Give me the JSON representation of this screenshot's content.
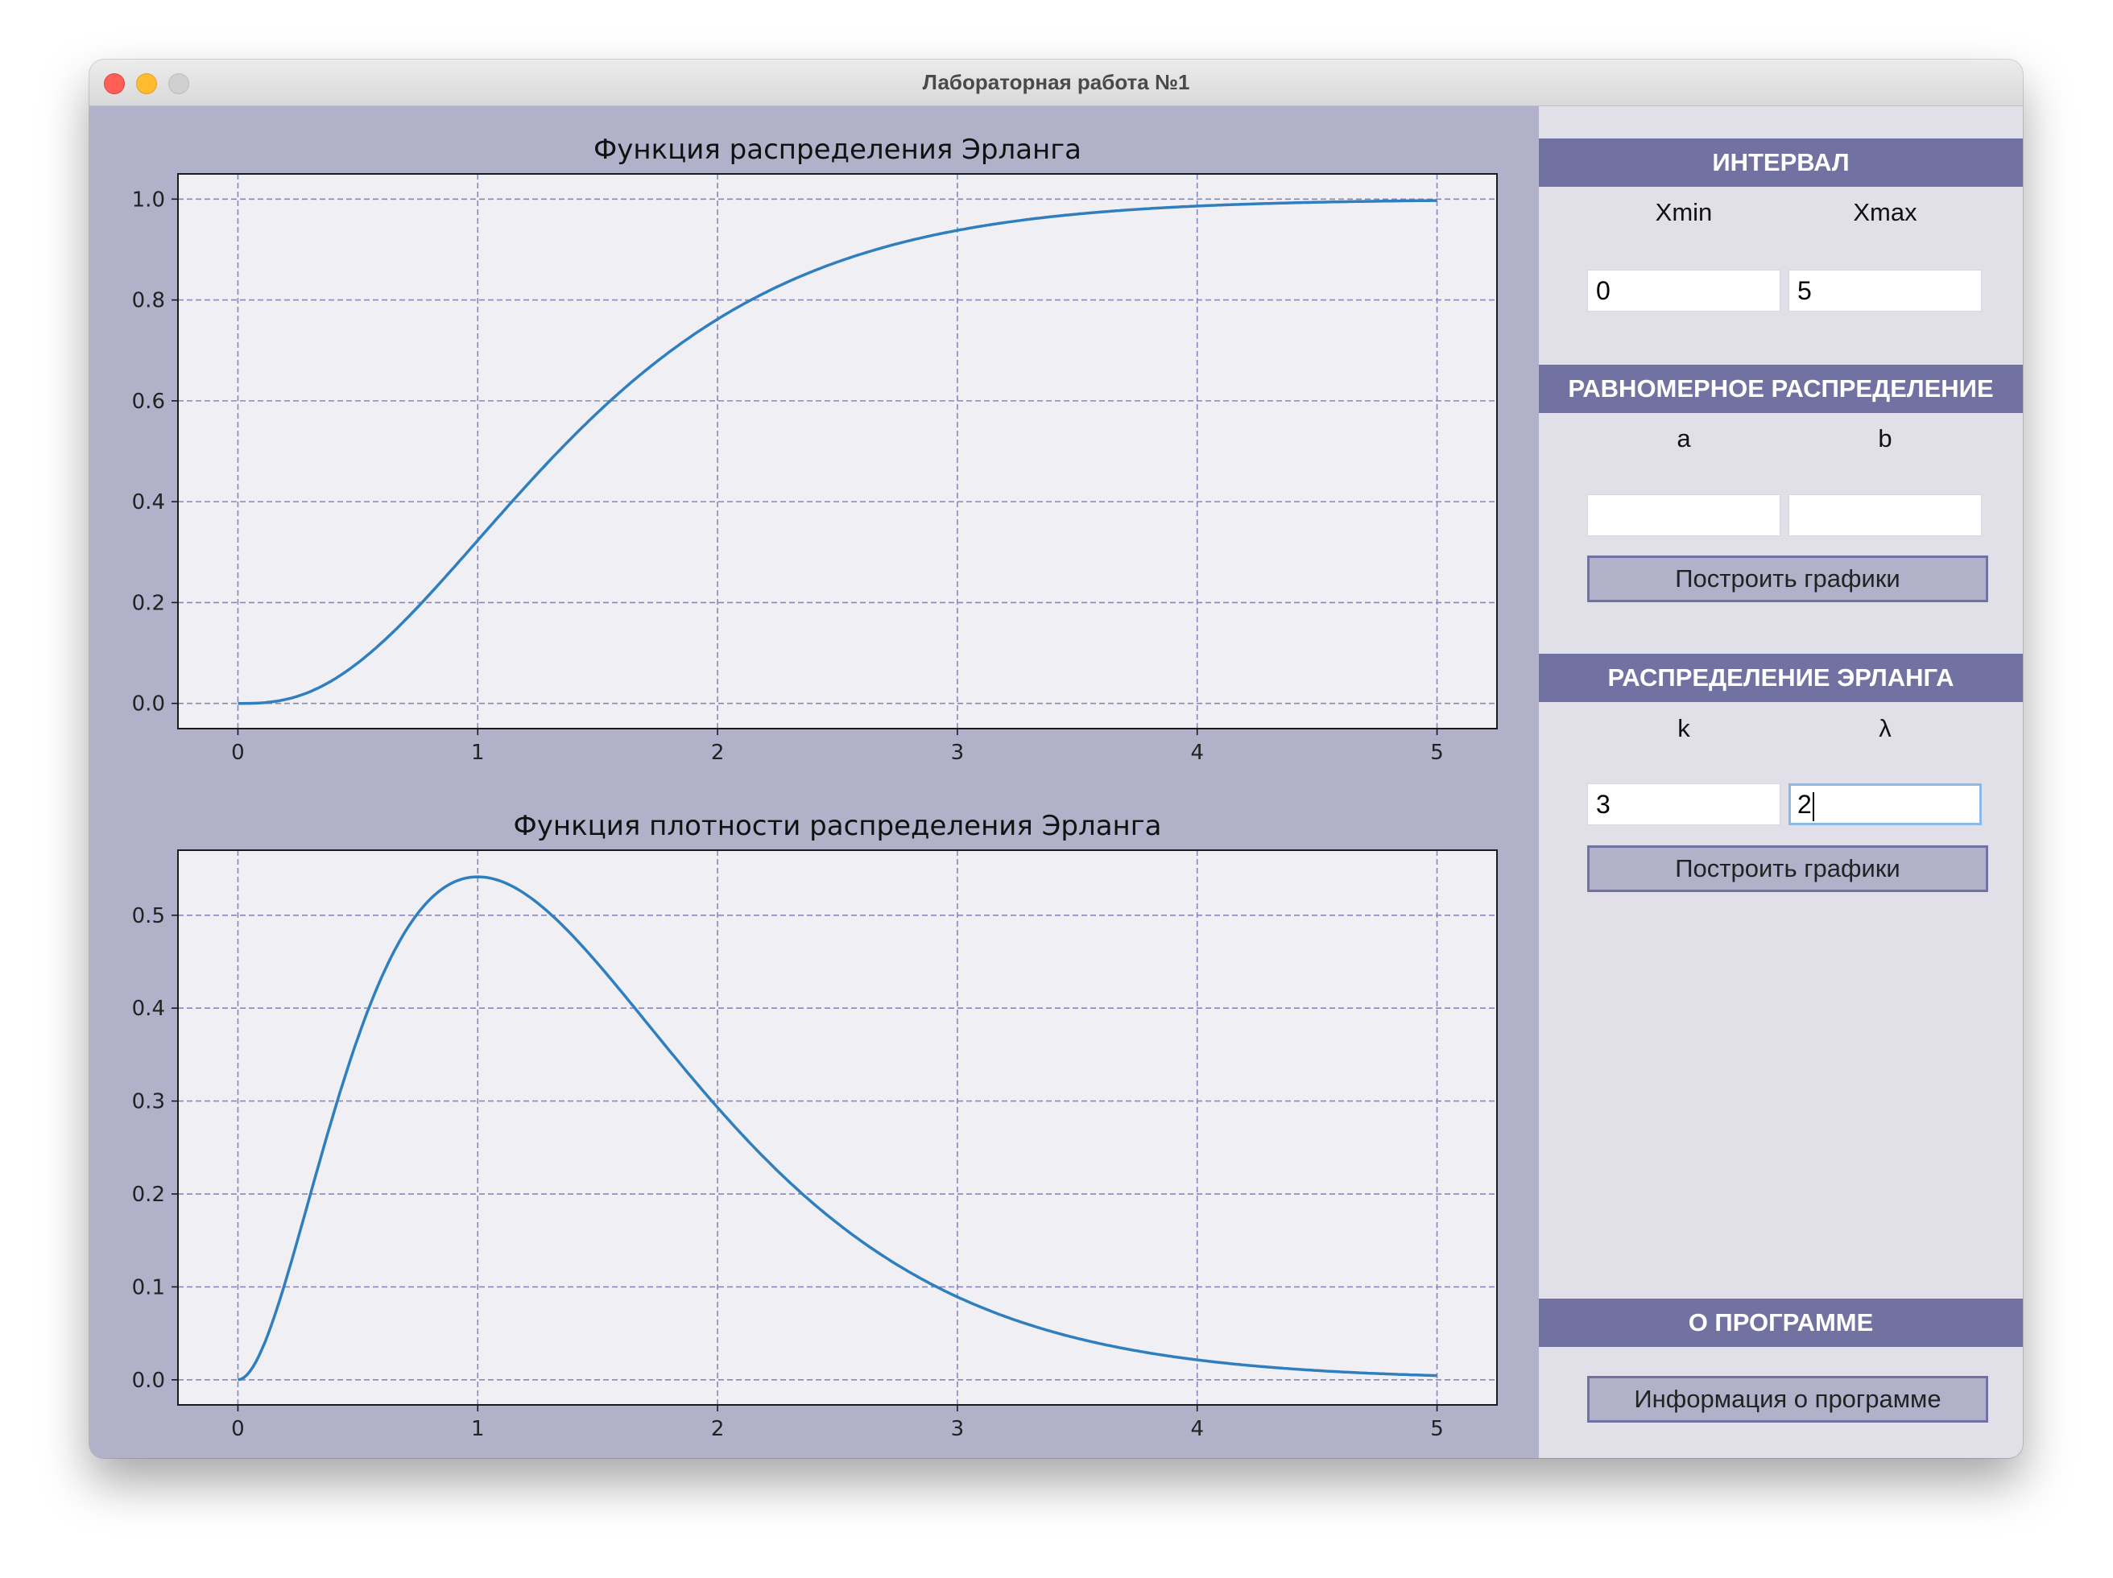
{
  "window": {
    "title": "Лабораторная работа №1"
  },
  "colors": {
    "header": "#7272a2",
    "sidebar": "#e1e0e9",
    "plot_background": "#b1b1ca",
    "axes_face": "#efeff4",
    "grid": "#8a87bb",
    "line": "#2f7fbf"
  },
  "sidebar": {
    "interval": {
      "header": "ИНТЕРВАЛ",
      "xmin_label": "Xmin",
      "xmax_label": "Xmax",
      "xmin_value": "0",
      "xmax_value": "5"
    },
    "uniform": {
      "header": "РАВНОМЕРНОЕ РАСПРЕДЕЛЕНИЕ",
      "a_label": "a",
      "b_label": "b",
      "a_value": "",
      "b_value": "",
      "button": "Построить графики"
    },
    "erlang": {
      "header": "РАСПРЕДЕЛЕНИЕ ЭРЛАНГА",
      "k_label": "k",
      "lambda_label": "λ",
      "k_value": "3",
      "lambda_value": "2",
      "button": "Построить графики"
    },
    "about": {
      "header": "О ПРОГРАММЕ",
      "button": "Информация о программе"
    }
  },
  "chart_data": [
    {
      "type": "line",
      "title": "Функция распределения Эрланга",
      "function": "erlang_cdf",
      "params": {
        "k": 3,
        "lambda": 2
      },
      "x": [
        0,
        0.25,
        0.5,
        0.75,
        1,
        1.25,
        1.5,
        1.75,
        2,
        2.25,
        2.5,
        2.75,
        3,
        3.25,
        3.5,
        3.75,
        4,
        4.25,
        4.5,
        4.75,
        5
      ],
      "y": [
        0,
        0.014,
        0.08,
        0.191,
        0.323,
        0.456,
        0.577,
        0.679,
        0.762,
        0.826,
        0.875,
        0.912,
        0.938,
        0.957,
        0.97,
        0.98,
        0.986,
        0.991,
        0.994,
        0.996,
        0.997
      ],
      "xlim": [
        -0.25,
        5.25
      ],
      "ylim": [
        -0.05,
        1.05
      ],
      "xticks": [
        "0",
        "1",
        "2",
        "3",
        "4",
        "5"
      ],
      "yticks": [
        "0.0",
        "0.2",
        "0.4",
        "0.6",
        "0.8",
        "1.0"
      ],
      "grid": true
    },
    {
      "type": "line",
      "title": "Функция плотности распределения Эрланга",
      "function": "erlang_pdf",
      "params": {
        "k": 3,
        "lambda": 2
      },
      "x": [
        0,
        0.25,
        0.5,
        0.75,
        1,
        1.25,
        1.5,
        1.75,
        2,
        2.25,
        2.5,
        2.75,
        3,
        3.25,
        3.5,
        3.75,
        4,
        4.25,
        4.5,
        4.75,
        5
      ],
      "y": [
        0,
        0.152,
        0.368,
        0.502,
        0.541,
        0.513,
        0.448,
        0.369,
        0.293,
        0.225,
        0.168,
        0.123,
        0.089,
        0.064,
        0.045,
        0.031,
        0.021,
        0.015,
        0.01,
        0.007,
        0.005
      ],
      "xlim": [
        -0.25,
        5.25
      ],
      "ylim": [
        -0.027,
        0.57
      ],
      "xticks": [
        "0",
        "1",
        "2",
        "3",
        "4",
        "5"
      ],
      "yticks": [
        "0.0",
        "0.1",
        "0.2",
        "0.3",
        "0.4",
        "0.5"
      ],
      "grid": true
    }
  ]
}
